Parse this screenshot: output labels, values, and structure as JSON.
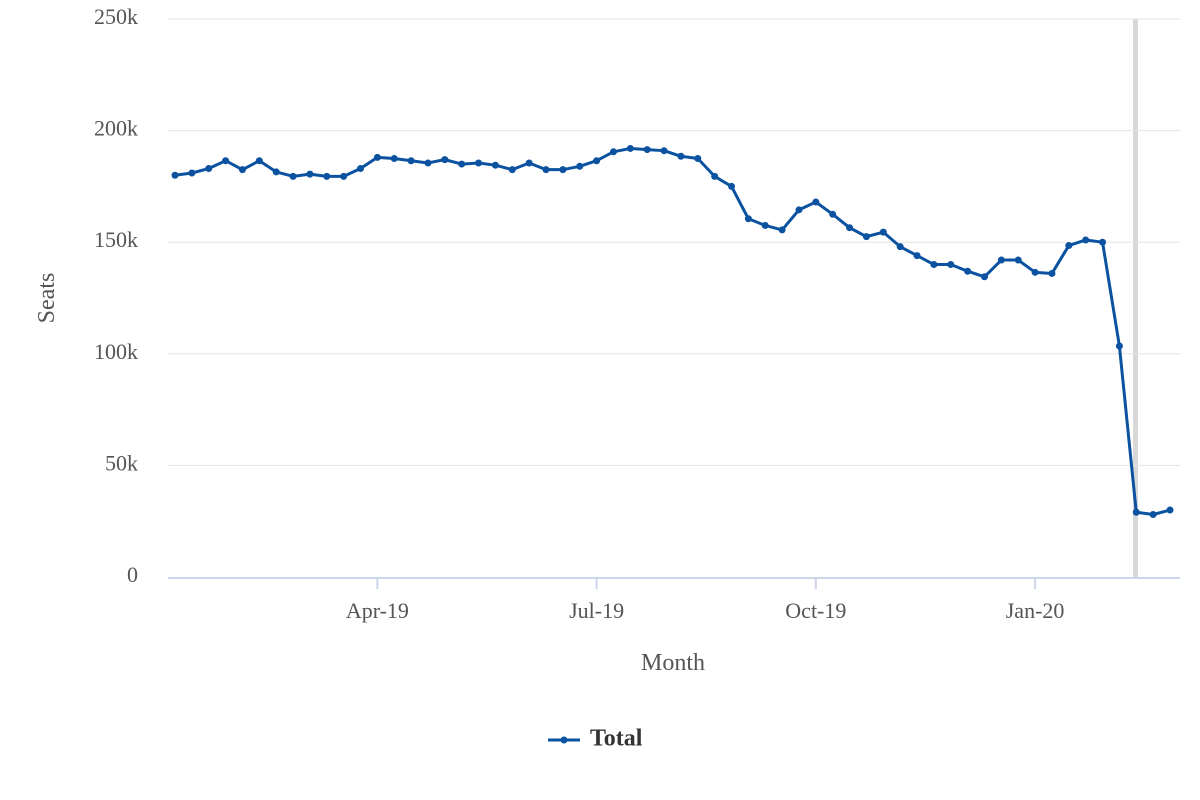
{
  "chart_data": {
    "type": "line",
    "x_label": "Month",
    "y_label": "Seats",
    "categories": [
      null,
      null,
      null,
      null,
      null,
      null,
      null,
      null,
      null,
      null,
      null,
      null,
      "Apr-19",
      null,
      null,
      null,
      null,
      null,
      null,
      null,
      null,
      null,
      null,
      null,
      null,
      "Jul-19",
      null,
      null,
      null,
      null,
      null,
      null,
      null,
      null,
      null,
      null,
      null,
      null,
      "Oct-19",
      null,
      null,
      null,
      null,
      null,
      null,
      null,
      null,
      null,
      null,
      null,
      null,
      "Jan-20",
      null,
      null,
      null,
      null,
      null,
      null,
      null,
      null
    ],
    "series": [
      {
        "name": "Total",
        "color": "#0b52a0",
        "values": [
          180000,
          181000,
          183000,
          186500,
          182500,
          186500,
          181500,
          179500,
          180500,
          179500,
          179500,
          183000,
          188000,
          187500,
          186500,
          185500,
          187000,
          185000,
          185500,
          184500,
          182500,
          185500,
          182500,
          182500,
          184000,
          186500,
          190500,
          192000,
          191500,
          191000,
          188500,
          187500,
          179500,
          175000,
          160500,
          157500,
          155500,
          164500,
          168000,
          162500,
          156500,
          152500,
          154500,
          148000,
          144000,
          140000,
          140000,
          137000,
          134500,
          142000,
          142000,
          136500,
          136000,
          148500,
          151000,
          150000,
          103500,
          29000,
          28000,
          30000
        ]
      }
    ],
    "ylim": [
      0,
      250000
    ],
    "yticks": [
      0,
      {
        "value": 50000,
        "label": "50k"
      },
      {
        "value": 100000,
        "label": "100k"
      },
      {
        "value": 150000,
        "label": "150k"
      },
      {
        "value": 200000,
        "label": "200k"
      },
      {
        "value": 250000,
        "label": "250k"
      }
    ],
    "grid": true,
    "legend": "bottom"
  }
}
